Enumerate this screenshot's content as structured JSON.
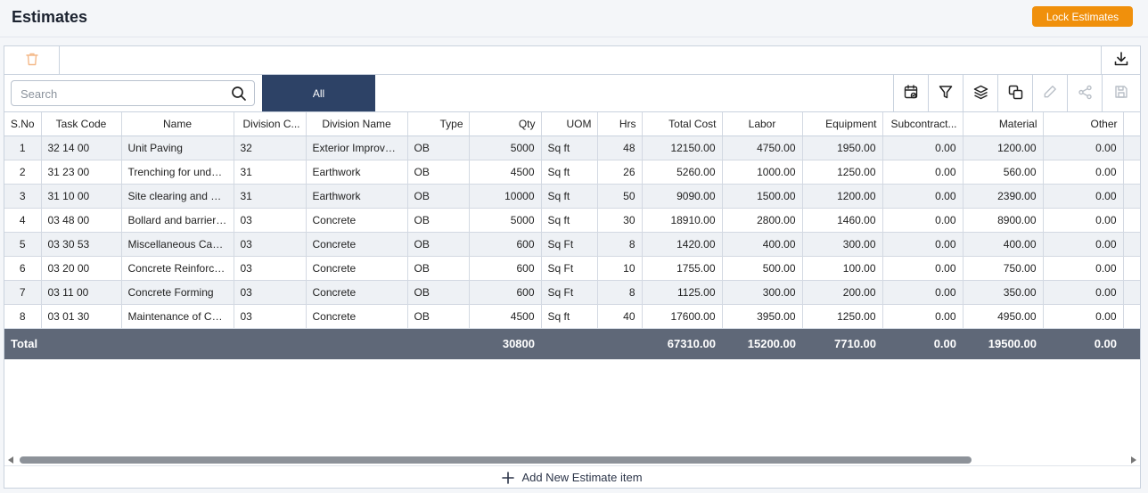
{
  "header": {
    "title": "Estimates",
    "lock_label": "Lock Estimates"
  },
  "search": {
    "placeholder": "Search"
  },
  "tabs": {
    "all_label": "All"
  },
  "toolbar": {
    "icons": [
      "calendar-check-icon",
      "filter-icon",
      "layers-icon",
      "copy-icon",
      "edit-icon",
      "share-icon",
      "save-icon"
    ]
  },
  "table": {
    "columns": [
      "S.No",
      "Task Code",
      "Name",
      "Division C...",
      "Division Name",
      "Type",
      "Qty",
      "UOM",
      "Hrs",
      "Total Cost",
      "Labor",
      "Equipment",
      "Subcontract...",
      "Material",
      "Other"
    ],
    "rows": [
      [
        "1",
        "32 14 00",
        "Unit Paving",
        "32",
        "Exterior Improvem...",
        "OB",
        "5000",
        "Sq ft",
        "48",
        "12150.00",
        "4750.00",
        "1950.00",
        "0.00",
        "1200.00",
        "0.00"
      ],
      [
        "2",
        "31 23 00",
        "Trenching for undergr...",
        "31",
        "Earthwork",
        "OB",
        "4500",
        "Sq ft",
        "26",
        "5260.00",
        "1000.00",
        "1250.00",
        "0.00",
        "560.00",
        "0.00"
      ],
      [
        "3",
        "31 10 00",
        "Site clearing and gradi...",
        "31",
        "Earthwork",
        "OB",
        "10000",
        "Sq ft",
        "50",
        "9090.00",
        "1500.00",
        "1200.00",
        "0.00",
        "2390.00",
        "0.00"
      ],
      [
        "4",
        "03 48 00",
        "Bollard and barrier in...",
        "03",
        "Concrete",
        "OB",
        "5000",
        "Sq ft",
        "30",
        "18910.00",
        "2800.00",
        "1460.00",
        "0.00",
        "8900.00",
        "0.00"
      ],
      [
        "5",
        "03 30 53",
        "Miscellaneous Cast-in...",
        "03",
        "Concrete",
        "OB",
        "600",
        "Sq Ft",
        "8",
        "1420.00",
        "400.00",
        "300.00",
        "0.00",
        "400.00",
        "0.00"
      ],
      [
        "6",
        "03 20 00",
        "Concrete Reinforcing",
        "03",
        "Concrete",
        "OB",
        "600",
        "Sq Ft",
        "10",
        "1755.00",
        "500.00",
        "100.00",
        "0.00",
        "750.00",
        "0.00"
      ],
      [
        "7",
        "03 11 00",
        "Concrete Forming",
        "03",
        "Concrete",
        "OB",
        "600",
        "Sq Ft",
        "8",
        "1125.00",
        "300.00",
        "200.00",
        "0.00",
        "350.00",
        "0.00"
      ],
      [
        "8",
        "03 01 30",
        "Maintenance of Cast-...",
        "03",
        "Concrete",
        "OB",
        "4500",
        "Sq ft",
        "40",
        "17600.00",
        "3950.00",
        "1250.00",
        "0.00",
        "4950.00",
        "0.00"
      ]
    ],
    "totals": {
      "label": "Total",
      "qty": "30800",
      "total_cost": "67310.00",
      "labor": "15200.00",
      "equipment": "7710.00",
      "subcontract": "0.00",
      "material": "19500.00",
      "other": "0.00"
    }
  },
  "footer": {
    "add_label": "Add New Estimate item"
  },
  "colors": {
    "accent": "#f0900c",
    "tab_active": "#2d4266",
    "total_row": "#5f6878"
  }
}
